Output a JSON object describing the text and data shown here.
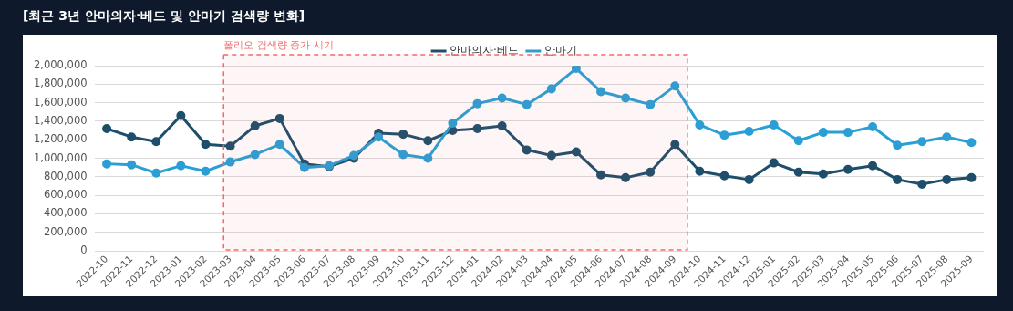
{
  "chart_data": {
    "type": "line",
    "title": "[최근 3년 안마의자·베드 및 안마기 검색량 변화]",
    "categories": [
      "2022-10",
      "2022-11",
      "2022-12",
      "2023-01",
      "2023-02",
      "2023-03",
      "2023-04",
      "2023-05",
      "2023-06",
      "2023-07",
      "2023-08",
      "2023-09",
      "2023-10",
      "2023-11",
      "2023-12",
      "2024-01",
      "2024-02",
      "2024-03",
      "2024-04",
      "2024-05",
      "2024-06",
      "2024-07",
      "2024-08",
      "2024-09",
      "2024-10",
      "2024-11",
      "2024-12",
      "2025-01",
      "2025-02",
      "2025-03",
      "2025-04",
      "2025-05",
      "2025-06",
      "2025-07",
      "2025-08",
      "2025-09"
    ],
    "series": [
      {
        "name": "안마의자·베드",
        "color": "#1d4e6b",
        "values": [
          1320000,
          1230000,
          1180000,
          1460000,
          1150000,
          1130000,
          1350000,
          1430000,
          940000,
          910000,
          1000000,
          1270000,
          1260000,
          1190000,
          1300000,
          1320000,
          1350000,
          1090000,
          1030000,
          1070000,
          820000,
          790000,
          850000,
          1150000,
          860000,
          810000,
          770000,
          950000,
          850000,
          830000,
          880000,
          920000,
          770000,
          720000,
          770000,
          790000
        ]
      },
      {
        "name": "안마기",
        "color": "#2a9fd6",
        "values": [
          940000,
          930000,
          840000,
          920000,
          860000,
          960000,
          1040000,
          1150000,
          900000,
          920000,
          1030000,
          1230000,
          1040000,
          1000000,
          1380000,
          1590000,
          1650000,
          1580000,
          1750000,
          1970000,
          1720000,
          1650000,
          1580000,
          1780000,
          1360000,
          1250000,
          1290000,
          1360000,
          1190000,
          1280000,
          1280000,
          1340000,
          1140000,
          1180000,
          1230000,
          1170000
        ]
      }
    ],
    "ylim": [
      0,
      2000000
    ],
    "yticks": [
      0,
      {
        "value": 200000,
        "label": "200,000"
      },
      {
        "value": 400000,
        "label": "400,000"
      },
      {
        "value": 600000,
        "label": "600,000"
      },
      {
        "value": 800000,
        "label": "800,000"
      },
      {
        "value": 1000000,
        "label": "1,000,000"
      },
      {
        "value": 1200000,
        "label": "1,200,000"
      },
      {
        "value": 1400000,
        "label": "1,400,000"
      },
      {
        "value": 1600000,
        "label": "1,600,000"
      },
      {
        "value": 1800000,
        "label": "1,800,000"
      },
      {
        "value": 2000000,
        "label": "2,000,000"
      }
    ],
    "bands": [
      {
        "axis": "x",
        "from": "2023-03",
        "to": "2024-09",
        "label": "폴리오 검색량 증가 시기",
        "color": "#f06b6b"
      }
    ],
    "grid": "y",
    "legend": "top",
    "marker": "circle",
    "line_style": "solid"
  }
}
